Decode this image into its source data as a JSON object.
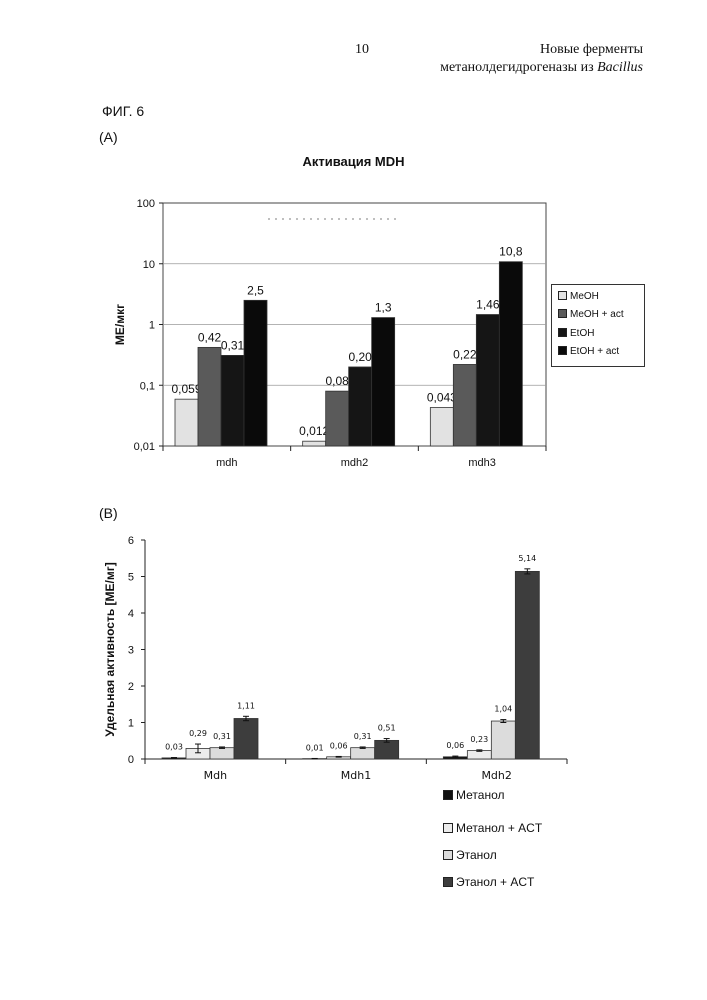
{
  "header": {
    "page_number": "10",
    "title_line1": "Новые ферменты",
    "title_line2_prefix": "метанолдегидрогеназы из ",
    "title_line2_italic": "Bacillus"
  },
  "figure_label": "ФИГ. 6",
  "panel_a_label": "(A)",
  "panel_b_label": "(B)",
  "colors": {
    "meoh": "#e2e2e2",
    "meoh_act": "#5a5a5a",
    "etoh": "#151515",
    "etoh_act": "#0a0a0a",
    "b_metanol": "#111111",
    "b_metanol_act": "#ececec",
    "b_etanol": "#dcdcdc",
    "b_etanol_act": "#3d3d3d",
    "plot_bg_a": "#ffffff",
    "grid": "#9a9a9a"
  },
  "chart_data": [
    {
      "type": "bar",
      "title": "Активация MDH",
      "ylabel": "МЕ/мкг",
      "xlabel": "",
      "yscale": "log",
      "ylim": [
        0.01,
        100
      ],
      "yticks": [
        "0,01",
        "0,1",
        "1",
        "10",
        "100"
      ],
      "categories": [
        "mdh",
        "mdh2",
        "mdh3"
      ],
      "legend_position": "right",
      "grid": true,
      "series": [
        {
          "name": "MeOH",
          "values": [
            0.059,
            0.012,
            0.043
          ],
          "labels": [
            "0,059",
            "0,012",
            "0,043"
          ]
        },
        {
          "name": "MeOH + act",
          "values": [
            0.42,
            0.08,
            0.22
          ],
          "labels": [
            "0,42",
            "0,08",
            "0,22"
          ]
        },
        {
          "name": "EtOH",
          "values": [
            0.31,
            0.2,
            1.46
          ],
          "labels": [
            "0,31",
            "0,20",
            "1,46"
          ]
        },
        {
          "name": "EtOH + act",
          "values": [
            2.5,
            1.3,
            10.8
          ],
          "labels": [
            "2,5",
            "1,3",
            "10,8"
          ]
        }
      ]
    },
    {
      "type": "bar",
      "title": "",
      "ylabel": "Удельная активность [МЕ/мг]",
      "xlabel": "",
      "ylim": [
        0,
        6
      ],
      "yticks": [
        "0",
        "1",
        "2",
        "3",
        "4",
        "5",
        "6"
      ],
      "categories": [
        "Mdh",
        "Mdh1",
        "Mdh2"
      ],
      "legend_position": "bottom-right",
      "grid": false,
      "series": [
        {
          "name": "Метанол",
          "values": [
            0.03,
            0.01,
            0.06
          ],
          "labels": [
            "0,03",
            "0,01",
            "0,06"
          ],
          "errors": [
            0.01,
            0.005,
            0.02
          ]
        },
        {
          "name": "Метанол + ACT",
          "values": [
            0.29,
            0.06,
            0.23
          ],
          "labels": [
            "0,29",
            "0,06",
            "0,23"
          ],
          "errors": [
            0.12,
            0.01,
            0.02
          ]
        },
        {
          "name": "Этанол",
          "values": [
            0.31,
            0.31,
            1.04
          ],
          "labels": [
            "0,31",
            "0,31",
            "1,04"
          ],
          "errors": [
            0.02,
            0.02,
            0.04
          ]
        },
        {
          "name": "Этанол + ACT",
          "values": [
            1.11,
            0.51,
            5.14
          ],
          "labels": [
            "1,11",
            "0,51",
            "5,14"
          ],
          "errors": [
            0.06,
            0.05,
            0.07
          ]
        }
      ]
    }
  ]
}
